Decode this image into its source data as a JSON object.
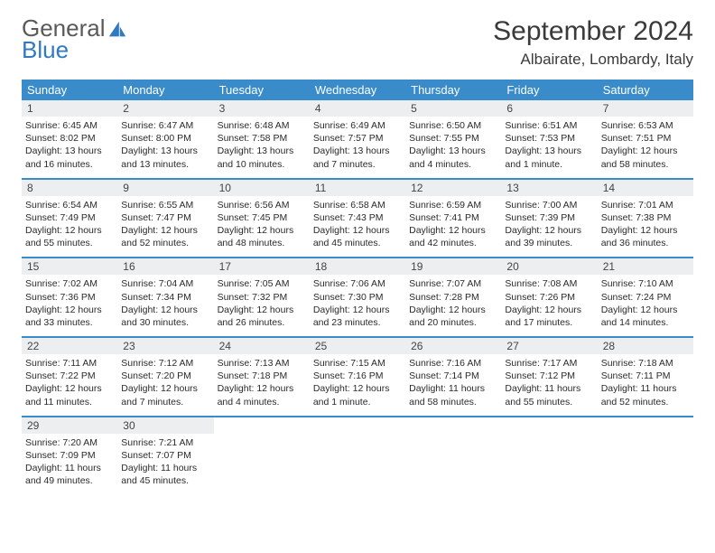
{
  "logo": {
    "word1": "General",
    "word2": "Blue",
    "icon_color": "#2f7ac0",
    "text_color_1": "#5a5a5a",
    "text_color_2": "#2f7ac0"
  },
  "header": {
    "month_title": "September 2024",
    "location": "Albairate, Lombardy, Italy"
  },
  "colors": {
    "accent": "#3a8bc9",
    "daynum_bg": "#eceeef",
    "text": "#2a2a2a"
  },
  "days_of_week": [
    "Sunday",
    "Monday",
    "Tuesday",
    "Wednesday",
    "Thursday",
    "Friday",
    "Saturday"
  ],
  "weeks": [
    [
      {
        "n": "1",
        "sunrise": "Sunrise: 6:45 AM",
        "sunset": "Sunset: 8:02 PM",
        "dl1": "Daylight: 13 hours",
        "dl2": "and 16 minutes."
      },
      {
        "n": "2",
        "sunrise": "Sunrise: 6:47 AM",
        "sunset": "Sunset: 8:00 PM",
        "dl1": "Daylight: 13 hours",
        "dl2": "and 13 minutes."
      },
      {
        "n": "3",
        "sunrise": "Sunrise: 6:48 AM",
        "sunset": "Sunset: 7:58 PM",
        "dl1": "Daylight: 13 hours",
        "dl2": "and 10 minutes."
      },
      {
        "n": "4",
        "sunrise": "Sunrise: 6:49 AM",
        "sunset": "Sunset: 7:57 PM",
        "dl1": "Daylight: 13 hours",
        "dl2": "and 7 minutes."
      },
      {
        "n": "5",
        "sunrise": "Sunrise: 6:50 AM",
        "sunset": "Sunset: 7:55 PM",
        "dl1": "Daylight: 13 hours",
        "dl2": "and 4 minutes."
      },
      {
        "n": "6",
        "sunrise": "Sunrise: 6:51 AM",
        "sunset": "Sunset: 7:53 PM",
        "dl1": "Daylight: 13 hours",
        "dl2": "and 1 minute."
      },
      {
        "n": "7",
        "sunrise": "Sunrise: 6:53 AM",
        "sunset": "Sunset: 7:51 PM",
        "dl1": "Daylight: 12 hours",
        "dl2": "and 58 minutes."
      }
    ],
    [
      {
        "n": "8",
        "sunrise": "Sunrise: 6:54 AM",
        "sunset": "Sunset: 7:49 PM",
        "dl1": "Daylight: 12 hours",
        "dl2": "and 55 minutes."
      },
      {
        "n": "9",
        "sunrise": "Sunrise: 6:55 AM",
        "sunset": "Sunset: 7:47 PM",
        "dl1": "Daylight: 12 hours",
        "dl2": "and 52 minutes."
      },
      {
        "n": "10",
        "sunrise": "Sunrise: 6:56 AM",
        "sunset": "Sunset: 7:45 PM",
        "dl1": "Daylight: 12 hours",
        "dl2": "and 48 minutes."
      },
      {
        "n": "11",
        "sunrise": "Sunrise: 6:58 AM",
        "sunset": "Sunset: 7:43 PM",
        "dl1": "Daylight: 12 hours",
        "dl2": "and 45 minutes."
      },
      {
        "n": "12",
        "sunrise": "Sunrise: 6:59 AM",
        "sunset": "Sunset: 7:41 PM",
        "dl1": "Daylight: 12 hours",
        "dl2": "and 42 minutes."
      },
      {
        "n": "13",
        "sunrise": "Sunrise: 7:00 AM",
        "sunset": "Sunset: 7:39 PM",
        "dl1": "Daylight: 12 hours",
        "dl2": "and 39 minutes."
      },
      {
        "n": "14",
        "sunrise": "Sunrise: 7:01 AM",
        "sunset": "Sunset: 7:38 PM",
        "dl1": "Daylight: 12 hours",
        "dl2": "and 36 minutes."
      }
    ],
    [
      {
        "n": "15",
        "sunrise": "Sunrise: 7:02 AM",
        "sunset": "Sunset: 7:36 PM",
        "dl1": "Daylight: 12 hours",
        "dl2": "and 33 minutes."
      },
      {
        "n": "16",
        "sunrise": "Sunrise: 7:04 AM",
        "sunset": "Sunset: 7:34 PM",
        "dl1": "Daylight: 12 hours",
        "dl2": "and 30 minutes."
      },
      {
        "n": "17",
        "sunrise": "Sunrise: 7:05 AM",
        "sunset": "Sunset: 7:32 PM",
        "dl1": "Daylight: 12 hours",
        "dl2": "and 26 minutes."
      },
      {
        "n": "18",
        "sunrise": "Sunrise: 7:06 AM",
        "sunset": "Sunset: 7:30 PM",
        "dl1": "Daylight: 12 hours",
        "dl2": "and 23 minutes."
      },
      {
        "n": "19",
        "sunrise": "Sunrise: 7:07 AM",
        "sunset": "Sunset: 7:28 PM",
        "dl1": "Daylight: 12 hours",
        "dl2": "and 20 minutes."
      },
      {
        "n": "20",
        "sunrise": "Sunrise: 7:08 AM",
        "sunset": "Sunset: 7:26 PM",
        "dl1": "Daylight: 12 hours",
        "dl2": "and 17 minutes."
      },
      {
        "n": "21",
        "sunrise": "Sunrise: 7:10 AM",
        "sunset": "Sunset: 7:24 PM",
        "dl1": "Daylight: 12 hours",
        "dl2": "and 14 minutes."
      }
    ],
    [
      {
        "n": "22",
        "sunrise": "Sunrise: 7:11 AM",
        "sunset": "Sunset: 7:22 PM",
        "dl1": "Daylight: 12 hours",
        "dl2": "and 11 minutes."
      },
      {
        "n": "23",
        "sunrise": "Sunrise: 7:12 AM",
        "sunset": "Sunset: 7:20 PM",
        "dl1": "Daylight: 12 hours",
        "dl2": "and 7 minutes."
      },
      {
        "n": "24",
        "sunrise": "Sunrise: 7:13 AM",
        "sunset": "Sunset: 7:18 PM",
        "dl1": "Daylight: 12 hours",
        "dl2": "and 4 minutes."
      },
      {
        "n": "25",
        "sunrise": "Sunrise: 7:15 AM",
        "sunset": "Sunset: 7:16 PM",
        "dl1": "Daylight: 12 hours",
        "dl2": "and 1 minute."
      },
      {
        "n": "26",
        "sunrise": "Sunrise: 7:16 AM",
        "sunset": "Sunset: 7:14 PM",
        "dl1": "Daylight: 11 hours",
        "dl2": "and 58 minutes."
      },
      {
        "n": "27",
        "sunrise": "Sunrise: 7:17 AM",
        "sunset": "Sunset: 7:12 PM",
        "dl1": "Daylight: 11 hours",
        "dl2": "and 55 minutes."
      },
      {
        "n": "28",
        "sunrise": "Sunrise: 7:18 AM",
        "sunset": "Sunset: 7:11 PM",
        "dl1": "Daylight: 11 hours",
        "dl2": "and 52 minutes."
      }
    ],
    [
      {
        "n": "29",
        "sunrise": "Sunrise: 7:20 AM",
        "sunset": "Sunset: 7:09 PM",
        "dl1": "Daylight: 11 hours",
        "dl2": "and 49 minutes."
      },
      {
        "n": "30",
        "sunrise": "Sunrise: 7:21 AM",
        "sunset": "Sunset: 7:07 PM",
        "dl1": "Daylight: 11 hours",
        "dl2": "and 45 minutes."
      },
      null,
      null,
      null,
      null,
      null
    ]
  ]
}
